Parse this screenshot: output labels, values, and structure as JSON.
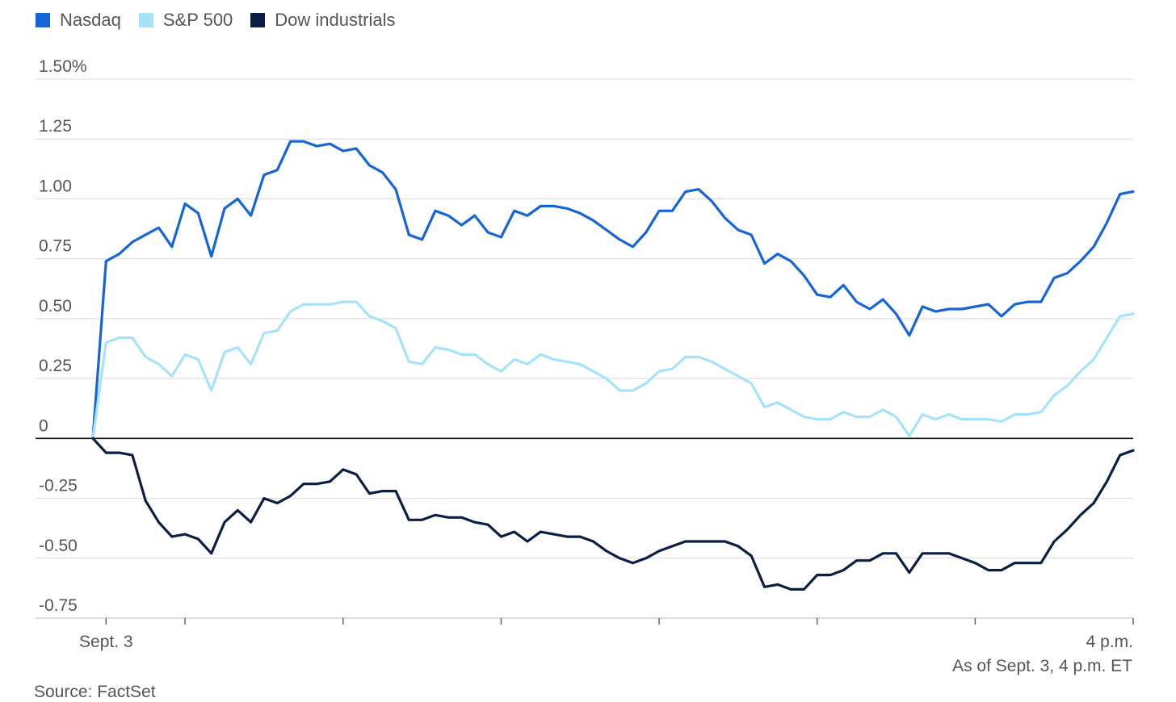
{
  "legend": [
    {
      "name": "Nasdaq",
      "color": "#1565d8"
    },
    {
      "name": "S&P 500",
      "color": "#a6e3fb"
    },
    {
      "name": "Dow industrials",
      "color": "#0b1f45"
    }
  ],
  "footer": {
    "as_of": "As of Sept. 3, 4 p.m. ET",
    "source": "Source: FactSet"
  },
  "chart_data": {
    "type": "line",
    "title": "",
    "xlabel": "",
    "ylabel": "",
    "ylim": [
      -0.75,
      1.5
    ],
    "yticks": [
      {
        "value": 1.5,
        "label": "1.50%"
      },
      {
        "value": 1.25,
        "label": "1.25"
      },
      {
        "value": 1.0,
        "label": "1.00"
      },
      {
        "value": 0.75,
        "label": "0.75"
      },
      {
        "value": 0.5,
        "label": "0.50"
      },
      {
        "value": 0.25,
        "label": "0.25"
      },
      {
        "value": 0,
        "label": "0"
      },
      {
        "value": -0.25,
        "label": "-0.25"
      },
      {
        "value": -0.5,
        "label": "-0.50"
      },
      {
        "value": -0.75,
        "label": "-0.75"
      }
    ],
    "xticks": [
      {
        "index": 1,
        "label": "Sept. 3"
      },
      {
        "index": 79,
        "label": "4 p.m."
      }
    ],
    "minor_ticks": [
      1,
      7,
      19,
      31,
      43,
      55,
      67,
      79
    ],
    "legend_position": "top-left",
    "grid": true,
    "series": [
      {
        "name": "Nasdaq",
        "color": "#1565d8",
        "values": [
          0.0,
          0.74,
          0.77,
          0.82,
          0.85,
          0.88,
          0.8,
          0.98,
          0.94,
          0.76,
          0.96,
          1.0,
          0.93,
          1.1,
          1.12,
          1.24,
          1.24,
          1.22,
          1.23,
          1.2,
          1.21,
          1.14,
          1.11,
          1.04,
          0.85,
          0.83,
          0.95,
          0.93,
          0.89,
          0.93,
          0.86,
          0.84,
          0.95,
          0.93,
          0.97,
          0.97,
          0.96,
          0.94,
          0.91,
          0.87,
          0.83,
          0.8,
          0.86,
          0.95,
          0.95,
          1.03,
          1.04,
          0.99,
          0.92,
          0.87,
          0.85,
          0.73,
          0.77,
          0.74,
          0.68,
          0.6,
          0.59,
          0.64,
          0.57,
          0.54,
          0.58,
          0.52,
          0.43,
          0.55,
          0.53,
          0.54,
          0.54,
          0.55,
          0.56,
          0.51,
          0.56,
          0.57,
          0.57,
          0.67,
          0.69,
          0.74,
          0.8,
          0.9,
          1.02,
          1.03
        ]
      },
      {
        "name": "S&P 500",
        "color": "#a6e3fb",
        "values": [
          0.0,
          0.4,
          0.42,
          0.42,
          0.34,
          0.31,
          0.26,
          0.35,
          0.33,
          0.2,
          0.36,
          0.38,
          0.31,
          0.44,
          0.45,
          0.53,
          0.56,
          0.56,
          0.56,
          0.57,
          0.57,
          0.51,
          0.49,
          0.46,
          0.32,
          0.31,
          0.38,
          0.37,
          0.35,
          0.35,
          0.31,
          0.28,
          0.33,
          0.31,
          0.35,
          0.33,
          0.32,
          0.31,
          0.28,
          0.25,
          0.2,
          0.2,
          0.23,
          0.28,
          0.29,
          0.34,
          0.34,
          0.32,
          0.29,
          0.26,
          0.23,
          0.13,
          0.15,
          0.12,
          0.09,
          0.08,
          0.08,
          0.11,
          0.09,
          0.09,
          0.12,
          0.09,
          0.01,
          0.1,
          0.08,
          0.1,
          0.08,
          0.08,
          0.08,
          0.07,
          0.1,
          0.1,
          0.11,
          0.18,
          0.22,
          0.28,
          0.33,
          0.42,
          0.51,
          0.52
        ]
      },
      {
        "name": "Dow industrials",
        "color": "#0b1f45",
        "values": [
          0.0,
          -0.06,
          -0.06,
          -0.07,
          -0.26,
          -0.35,
          -0.41,
          -0.4,
          -0.42,
          -0.48,
          -0.35,
          -0.3,
          -0.35,
          -0.25,
          -0.27,
          -0.24,
          -0.19,
          -0.19,
          -0.18,
          -0.13,
          -0.15,
          -0.23,
          -0.22,
          -0.22,
          -0.34,
          -0.34,
          -0.32,
          -0.33,
          -0.33,
          -0.35,
          -0.36,
          -0.41,
          -0.39,
          -0.43,
          -0.39,
          -0.4,
          -0.41,
          -0.41,
          -0.43,
          -0.47,
          -0.5,
          -0.52,
          -0.5,
          -0.47,
          -0.45,
          -0.43,
          -0.43,
          -0.43,
          -0.43,
          -0.45,
          -0.49,
          -0.62,
          -0.61,
          -0.63,
          -0.63,
          -0.57,
          -0.57,
          -0.55,
          -0.51,
          -0.51,
          -0.48,
          -0.48,
          -0.56,
          -0.48,
          -0.48,
          -0.48,
          -0.5,
          -0.52,
          -0.55,
          -0.55,
          -0.52,
          -0.52,
          -0.52,
          -0.43,
          -0.38,
          -0.32,
          -0.27,
          -0.18,
          -0.07,
          -0.05
        ]
      }
    ]
  }
}
